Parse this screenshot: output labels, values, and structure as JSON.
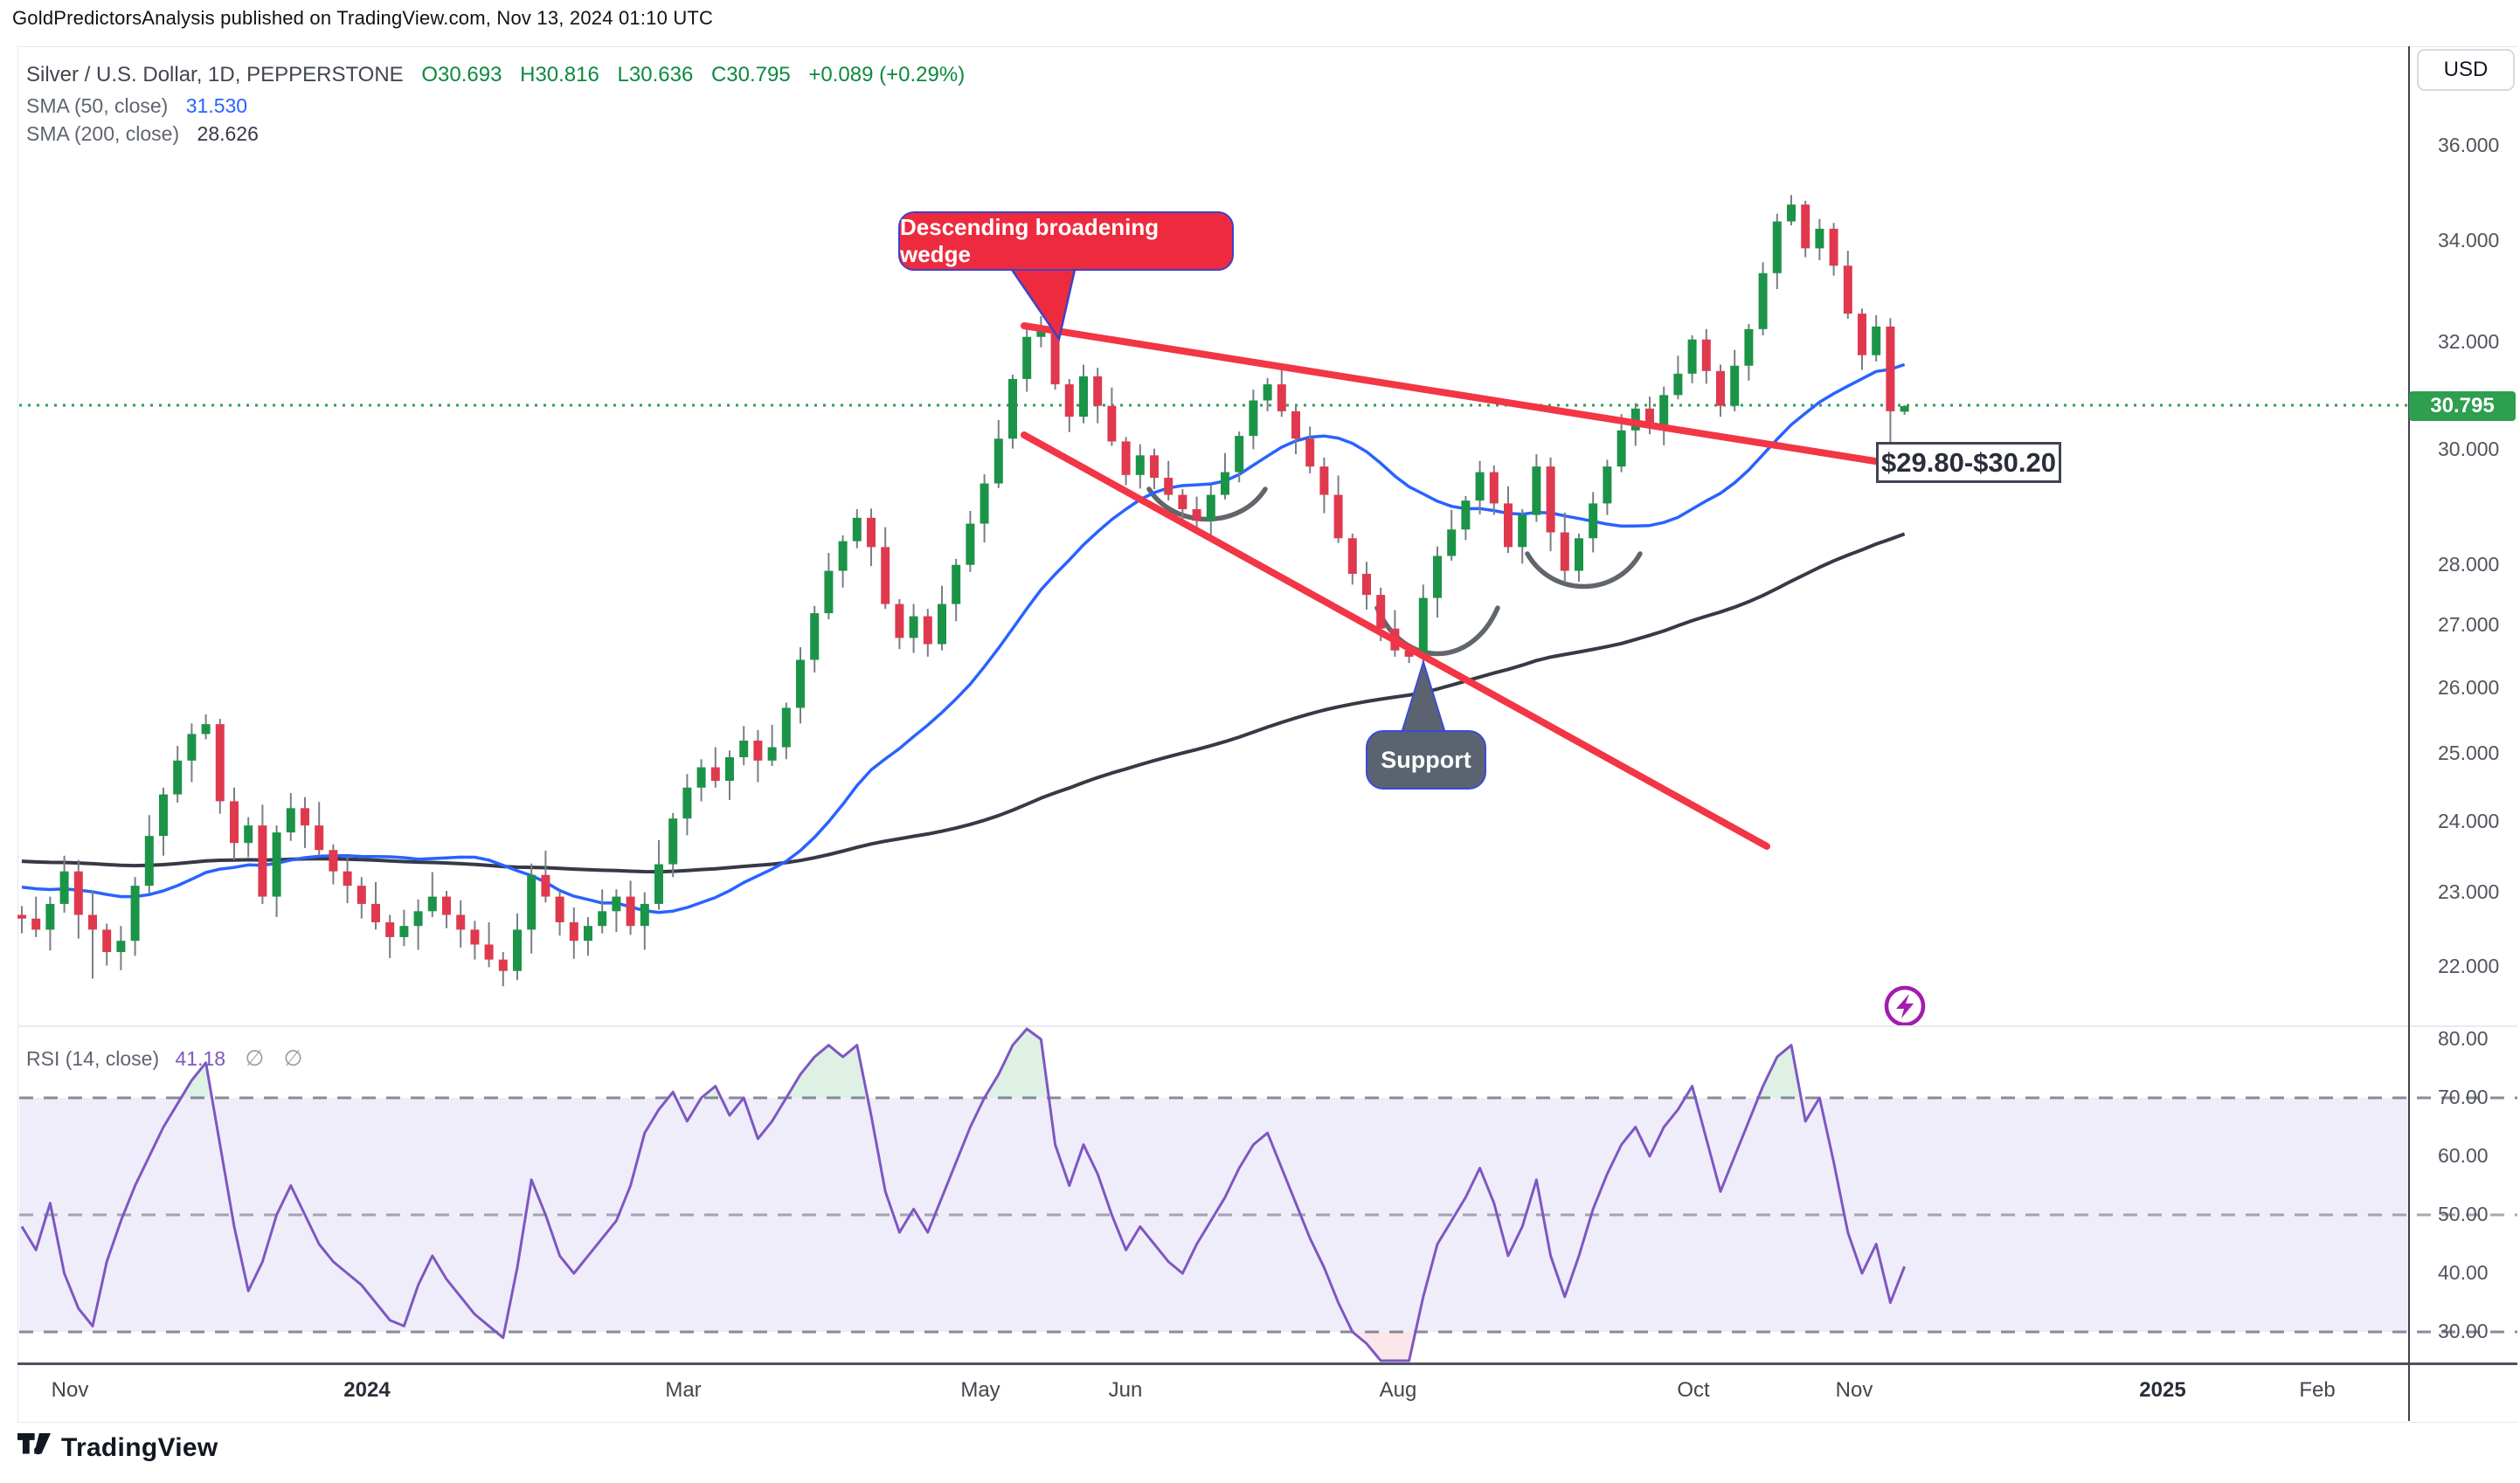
{
  "publisher": {
    "text": "GoldPredictorsAnalysis published on TradingView.com, Nov 13, 2024 01:10 UTC"
  },
  "header": {
    "symbol": "Silver / U.S. Dollar, 1D, PEPPERSTONE",
    "open": "O30.693",
    "high": "H30.816",
    "low": "L30.636",
    "close": "C30.795",
    "change": "+0.089 (+0.29%)"
  },
  "indicators": {
    "sma50_label": "SMA (50, close)",
    "sma50_value": "31.530",
    "sma200_label": "SMA (200, close)",
    "sma200_value": "28.626"
  },
  "rsi_legend": {
    "label": "RSI (14, close)",
    "value": "41.18",
    "hidden1": "∅",
    "hidden2": "∅"
  },
  "callouts": {
    "wedge": "Descending broadening wedge",
    "support": "Support",
    "zone": "$29.80-$30.20"
  },
  "axis": {
    "currency": "USD",
    "last_price": "30.795",
    "price_labels": [
      "36.000",
      "34.000",
      "32.000",
      "30.000",
      "28.000",
      "27.000",
      "26.000",
      "25.000",
      "24.000",
      "23.000",
      "22.000"
    ],
    "price_values": [
      36,
      34,
      32,
      30,
      28,
      27,
      26,
      25,
      24,
      23,
      22
    ],
    "rsi_labels": [
      "80.00",
      "70.00",
      "60.00",
      "50.00",
      "40.00",
      "30.00"
    ],
    "rsi_values": [
      80,
      70,
      60,
      50,
      40,
      30
    ],
    "time_ticks": [
      {
        "label": "Nov",
        "x": 80,
        "bold": false
      },
      {
        "label": "2024",
        "x": 420,
        "bold": true
      },
      {
        "label": "Mar",
        "x": 782,
        "bold": false
      },
      {
        "label": "May",
        "x": 1122,
        "bold": false
      },
      {
        "label": "Jun",
        "x": 1288,
        "bold": false
      },
      {
        "label": "Aug",
        "x": 1600,
        "bold": false
      },
      {
        "label": "Oct",
        "x": 1938,
        "bold": false
      },
      {
        "label": "Nov",
        "x": 2122,
        "bold": false
      },
      {
        "label": "2025",
        "x": 2475,
        "bold": true
      },
      {
        "label": "Feb",
        "x": 2652,
        "bold": false
      }
    ]
  },
  "footer": {
    "brand": "TradingView"
  },
  "colors": {
    "up": "#1b9447",
    "down": "#e0394e",
    "wick": "#7a7e85",
    "sma50": "#2962ff",
    "sma200": "#363a45",
    "rsi": "#7e57c2",
    "trend": "#f23645",
    "price_line": "#2e9e4f",
    "tag_bg": "#2e9e4f",
    "band": "#f0edfa",
    "dash": "#8a8a9a",
    "callout_red": "#ee2b3e",
    "callout_border": "#4040c8",
    "support_gray": "#5b6370",
    "support_border": "#3b4bd8",
    "arc": "#4b5058",
    "lightning": "#a21caf",
    "over_fill": "rgba(27,148,71,0.14)",
    "under_fill": "rgba(224,57,78,0.12)"
  },
  "chart_data": {
    "type": "candlestick",
    "title": "Silver / U.S. Dollar, 1D, PEPPERSTONE",
    "scale": "log",
    "ylabel": "USD",
    "ylim": [
      21.5,
      36.5
    ],
    "rsi_ylim": [
      25,
      85
    ],
    "price_line": 30.795,
    "support_zone": "29.80-30.20",
    "candle_period": "2 trading days per candle, Nov 2023 - Nov 13 2024",
    "open_first": 22.7,
    "closes": [
      22.65,
      22.5,
      22.85,
      23.3,
      22.7,
      22.5,
      22.2,
      22.35,
      23.1,
      23.8,
      24.4,
      24.9,
      25.3,
      25.45,
      24.3,
      23.7,
      23.95,
      22.95,
      23.85,
      24.2,
      23.95,
      23.6,
      23.3,
      23.1,
      22.85,
      22.6,
      22.4,
      22.55,
      22.75,
      22.95,
      22.7,
      22.5,
      22.3,
      22.1,
      21.95,
      22.5,
      23.25,
      22.95,
      22.6,
      22.35,
      22.55,
      22.75,
      22.95,
      22.55,
      22.85,
      23.4,
      24.05,
      24.5,
      24.8,
      24.6,
      24.95,
      25.2,
      24.9,
      25.1,
      25.7,
      26.45,
      27.2,
      27.9,
      28.4,
      28.8,
      28.3,
      27.35,
      26.8,
      27.15,
      26.7,
      27.35,
      28.0,
      28.7,
      29.4,
      30.2,
      31.3,
      32.1,
      32.3,
      31.2,
      30.6,
      31.35,
      30.8,
      30.15,
      29.55,
      29.9,
      29.5,
      29.2,
      28.95,
      28.75,
      29.2,
      29.6,
      30.25,
      30.9,
      31.2,
      30.7,
      30.2,
      29.7,
      29.2,
      28.45,
      27.85,
      27.5,
      26.95,
      26.6,
      26.5,
      27.45,
      28.15,
      28.6,
      29.1,
      29.6,
      29.05,
      28.3,
      28.85,
      29.7,
      28.55,
      27.9,
      28.45,
      29.05,
      29.7,
      30.35,
      30.75,
      30.4,
      31.0,
      31.4,
      32.05,
      31.45,
      30.8,
      31.55,
      32.25,
      33.35,
      34.4,
      34.75,
      33.85,
      34.25,
      33.5,
      32.55,
      31.75,
      32.3,
      30.7,
      30.795
    ],
    "wick_up": [
      0.12,
      0.3,
      0.1,
      0.22,
      0.16,
      0.34,
      0.08,
      0.2
    ],
    "wick_dn": [
      0.2,
      0.1,
      0.28,
      0.12,
      0.32,
      0.08,
      0.18,
      0.24
    ],
    "overrides": {
      "5": {
        "l": 21.85
      },
      "13": {
        "h": 25.6
      },
      "34": {
        "l": 21.75
      },
      "59": {
        "h": 28.95
      },
      "72": {
        "h": 32.5
      },
      "98": {
        "l": 26.4
      },
      "109": {
        "l": 27.7
      },
      "125": {
        "h": 34.95
      },
      "132": {
        "l": 29.9
      },
      "133": {
        "o": 30.693,
        "h": 30.816,
        "l": 30.636,
        "c": 30.795
      }
    },
    "sma50": {
      "window": 25,
      "seed": 23.1,
      "last_value": 31.53
    },
    "sma200": {
      "window": 100,
      "seed": 23.45,
      "last_value": 28.626
    },
    "rsi_period": 14,
    "rsi": [
      48,
      44,
      52,
      40,
      34,
      31,
      42,
      49,
      55,
      60,
      65,
      69,
      73,
      76,
      62,
      48,
      37,
      42,
      50,
      55,
      50,
      45,
      42,
      40,
      38,
      35,
      32,
      31,
      38,
      43,
      39,
      36,
      33,
      31,
      29,
      41,
      56,
      50,
      43,
      40,
      43,
      46,
      49,
      55,
      64,
      68,
      71,
      66,
      70,
      72,
      67,
      70,
      63,
      66,
      70,
      74,
      77,
      79,
      77,
      79,
      67,
      54,
      47,
      51,
      47,
      53,
      59,
      65,
      70,
      74,
      79,
      82,
      80,
      62,
      55,
      62,
      57,
      50,
      44,
      48,
      45,
      42,
      40,
      45,
      49,
      53,
      58,
      62,
      64,
      58,
      52,
      46,
      41,
      35,
      30,
      28,
      25,
      23,
      22,
      36,
      45,
      49,
      53,
      58,
      52,
      43,
      48,
      56,
      43,
      36,
      43,
      51,
      57,
      62,
      65,
      60,
      65,
      68,
      72,
      63,
      54,
      60,
      66,
      72,
      77,
      79,
      66,
      70,
      59,
      47,
      40,
      45,
      35,
      41.18
    ],
    "trendlines": [
      {
        "name": "wedge-upper-resistance",
        "from_price": 32.3,
        "to_price": 29.9
      },
      {
        "name": "wedge-lower-support",
        "from_price": 30.2,
        "to_price": 23.7
      }
    ],
    "rsi_bands": {
      "overbought": 70,
      "middle": 50,
      "oversold": 30
    }
  }
}
